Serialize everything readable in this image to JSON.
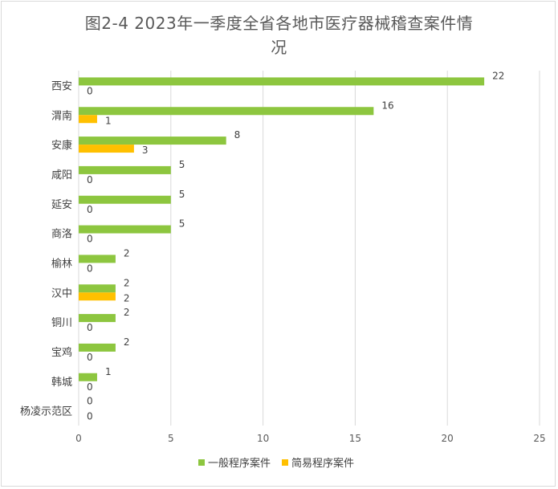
{
  "chart_data": {
    "type": "bar",
    "orientation": "horizontal",
    "title_line1": "图2-4  2023年一季度全省各地市医疗器械稽查案件情",
    "title_line2": "况",
    "categories": [
      "西安",
      "渭南",
      "安康",
      "咸阳",
      "延安",
      "商洛",
      "榆林",
      "汉中",
      "铜川",
      "宝鸡",
      "韩城",
      "杨凌示范区"
    ],
    "series": [
      {
        "name": "一般程序案件",
        "color": "#8dc63f",
        "values": [
          22,
          16,
          8,
          5,
          5,
          5,
          2,
          2,
          2,
          2,
          1,
          0
        ]
      },
      {
        "name": "简易程序案件",
        "color": "#ffc000",
        "values": [
          0,
          1,
          3,
          0,
          0,
          0,
          0,
          2,
          0,
          0,
          0,
          0
        ]
      }
    ],
    "xlim": [
      0,
      25
    ],
    "xticks": [
      "0",
      "5",
      "10",
      "15",
      "20",
      "25"
    ],
    "grid": true,
    "legend_position": "bottom"
  }
}
